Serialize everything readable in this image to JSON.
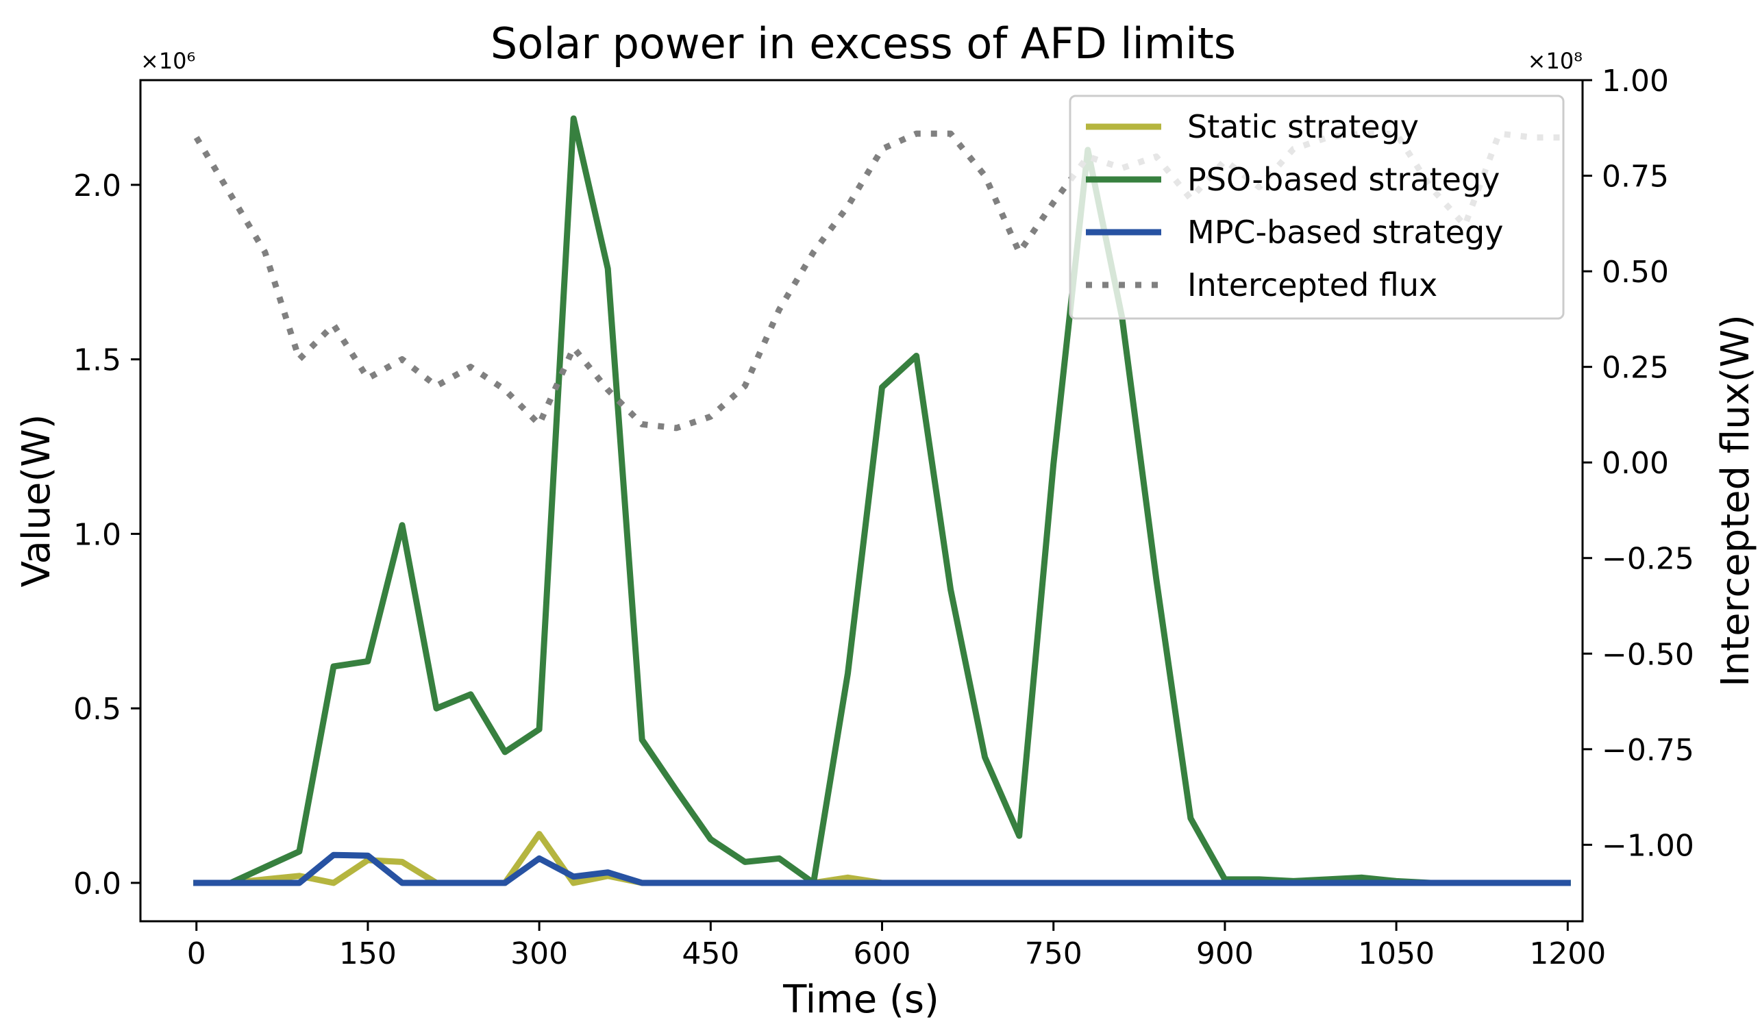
{
  "chart_data": {
    "type": "line",
    "title": "Solar power in excess of AFD limits",
    "xlabel": "Time (s)",
    "ylabel": "Value(W)",
    "y2label": "Intercepted flux(W)",
    "y_scale_label": "×10⁶",
    "y2_scale_label": "×10⁸",
    "xlim": [
      -49,
      1213
    ],
    "ylim": [
      -0.11,
      2.3
    ],
    "y2lim": [
      -1.2,
      1.0
    ],
    "xticks": [
      0,
      150,
      300,
      450,
      600,
      750,
      900,
      1050,
      1200
    ],
    "xtick_labels": [
      "0",
      "150",
      "300",
      "450",
      "600",
      "750",
      "900",
      "1050",
      "1200"
    ],
    "yticks": [
      0.0,
      0.5,
      1.0,
      1.5,
      2.0
    ],
    "ytick_labels": [
      "0.0",
      "0.5",
      "1.0",
      "1.5",
      "2.0"
    ],
    "y2ticks": [
      1.0,
      0.75,
      0.5,
      0.25,
      0.0,
      -0.25,
      -0.5,
      -0.75,
      -1.0
    ],
    "y2tick_labels": [
      "1.00",
      "0.75",
      "0.50",
      "0.25",
      "0.00",
      "−0.25",
      "−0.50",
      "−0.75",
      "−1.00"
    ],
    "legend_position": "top-right",
    "x": [
      0,
      30,
      60,
      90,
      120,
      150,
      180,
      210,
      240,
      270,
      300,
      330,
      360,
      390,
      420,
      450,
      480,
      510,
      540,
      570,
      600,
      630,
      660,
      690,
      720,
      750,
      780,
      810,
      840,
      870,
      900,
      930,
      960,
      990,
      1020,
      1050,
      1080,
      1110,
      1140,
      1170,
      1200
    ],
    "series": [
      {
        "name": "Static strategy",
        "axis": "left",
        "color": "#b5b53f",
        "style": "solid",
        "values": [
          0,
          0,
          0.01,
          0.02,
          0,
          0.065,
          0.06,
          0,
          0,
          0,
          0.14,
          0,
          0.02,
          0,
          0,
          0,
          0,
          0,
          0,
          0.015,
          0,
          0,
          0,
          0,
          0,
          0,
          0,
          0,
          0,
          0,
          0,
          0,
          0,
          0,
          0,
          0,
          0,
          0,
          0,
          0,
          0
        ]
      },
      {
        "name": "PSO-based strategy",
        "axis": "left",
        "color": "#37803f",
        "style": "solid",
        "values": [
          0,
          0,
          0.045,
          0.09,
          0.62,
          0.635,
          1.025,
          0.5,
          0.54,
          0.375,
          0.44,
          2.19,
          1.76,
          0.41,
          0.265,
          0.125,
          0.06,
          0.07,
          0,
          0.6,
          1.42,
          1.51,
          0.84,
          0.36,
          0.135,
          1.2,
          2.1,
          1.62,
          0.87,
          0.185,
          0.01,
          0.01,
          0.005,
          0.01,
          0.015,
          0.005,
          0,
          0,
          0,
          0,
          0
        ]
      },
      {
        "name": "MPC-based strategy",
        "axis": "left",
        "color": "#2752a2",
        "style": "solid",
        "values": [
          0,
          0,
          0,
          0,
          0.08,
          0.078,
          0,
          0,
          0,
          0,
          0.07,
          0.018,
          0.03,
          0,
          0,
          0,
          0,
          0,
          0,
          0,
          0,
          0,
          0,
          0,
          0,
          0,
          0,
          0,
          0,
          0,
          0,
          0,
          0,
          0,
          0,
          0,
          0,
          0,
          0,
          0,
          0
        ]
      },
      {
        "name": "Intercepted flux",
        "axis": "right",
        "color": "#808080",
        "style": "dotted",
        "values": [
          0.85,
          0.7,
          0.55,
          0.27,
          0.36,
          0.22,
          0.27,
          0.2,
          0.25,
          0.19,
          0.1,
          0.3,
          0.19,
          0.1,
          0.09,
          0.12,
          0.2,
          0.4,
          0.55,
          0.67,
          0.82,
          0.86,
          0.86,
          0.75,
          0.55,
          0.68,
          0.8,
          0.77,
          0.8,
          0.69,
          0.79,
          0.72,
          0.82,
          0.85,
          0.86,
          0.86,
          0.72,
          0.62,
          0.86,
          0.85,
          0.85
        ]
      }
    ]
  }
}
